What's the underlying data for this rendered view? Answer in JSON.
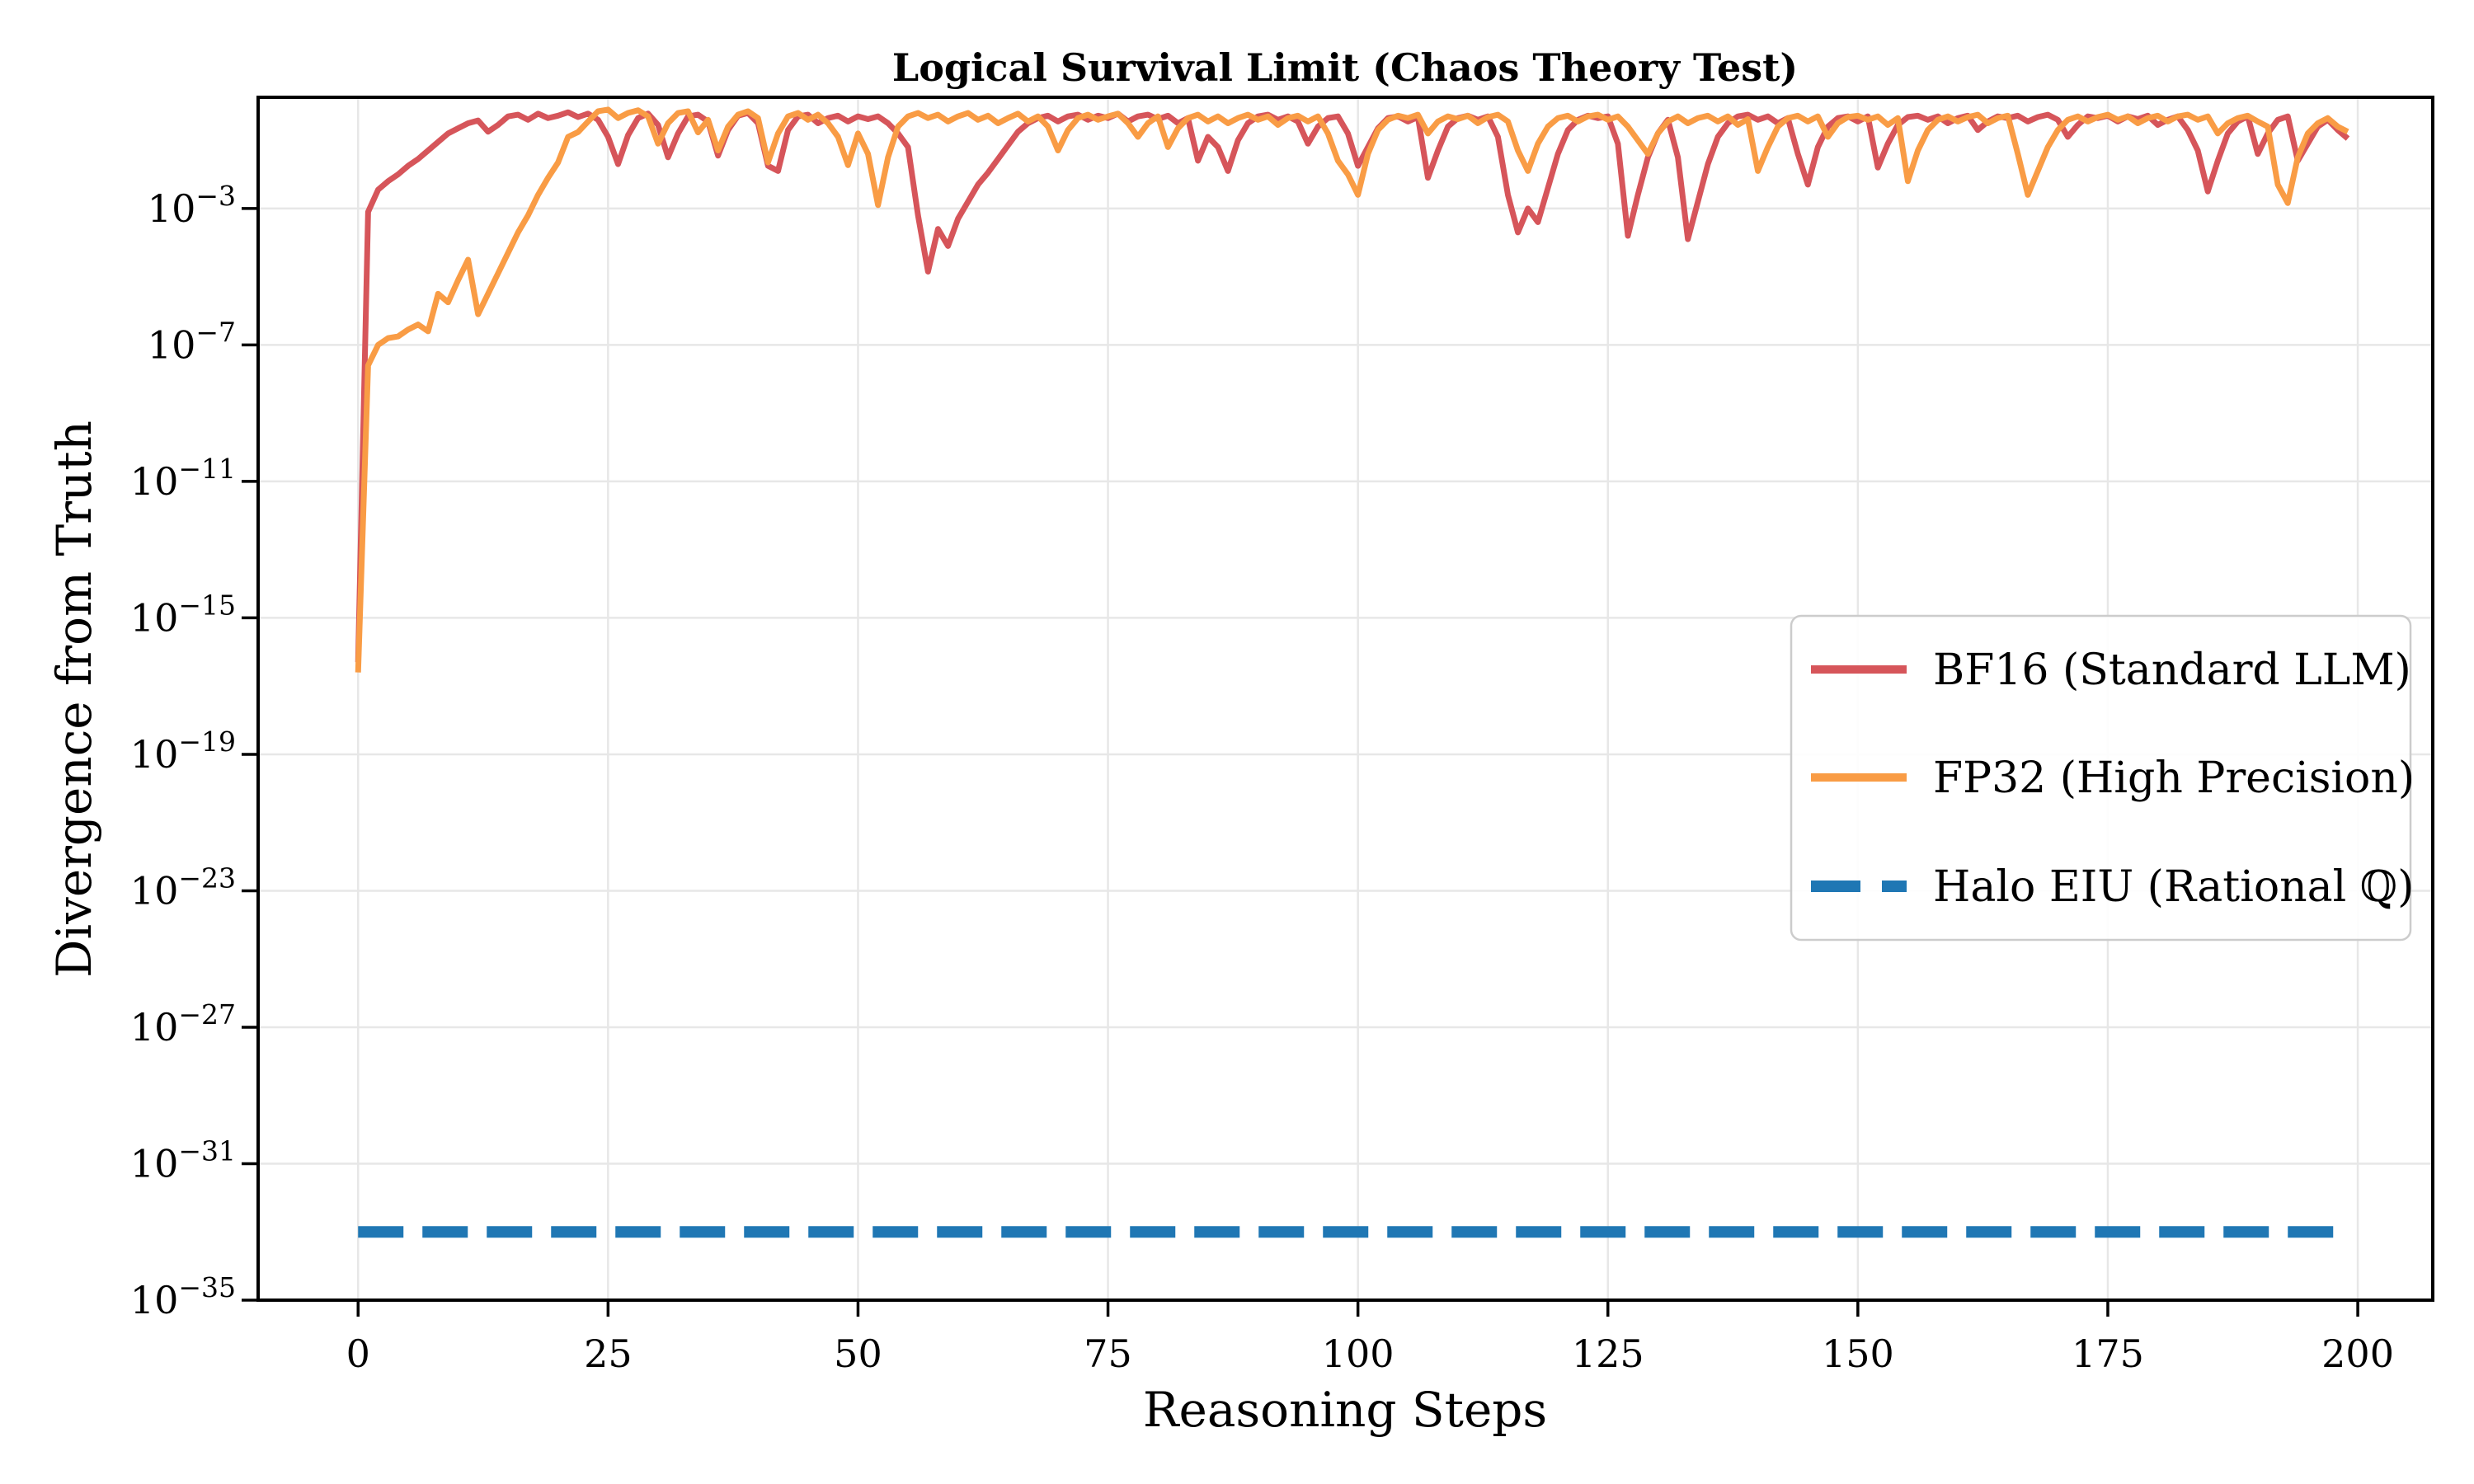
{
  "chart_data": {
    "type": "line",
    "title": "Logical Survival Limit (Chaos Theory Test)",
    "xlabel": "Reasoning Steps",
    "ylabel": "Divergence from Truth",
    "x_axis": {
      "ticks": [
        0,
        25,
        50,
        75,
        100,
        125,
        150,
        175,
        200
      ],
      "xlim": [
        -10,
        207.5
      ]
    },
    "y_axis": {
      "scale": "log",
      "tick_exponents": [
        -3,
        -7,
        -11,
        -15,
        -19,
        -23,
        -27,
        -31,
        -35
      ],
      "ylog10_lim": [
        -35,
        0.26
      ]
    },
    "grid": true,
    "legend_position": "center right",
    "style": {
      "background": "#ffffff",
      "grid_color": "#e7e7e7",
      "spine_color": "#000000",
      "legend_border": "#cccccc",
      "legend_bg": "#ffffff"
    },
    "series": [
      {
        "name": "BF16 (Standard LLM)",
        "color": "#d6555a",
        "style": "solid",
        "width": 7,
        "x_start": 0,
        "x_step": 1,
        "log10_values": [
          -16.3,
          -3.1,
          -2.45,
          -2.2,
          -2.0,
          -1.75,
          -1.55,
          -1.3,
          -1.05,
          -0.8,
          -0.65,
          -0.5,
          -0.42,
          -0.75,
          -0.55,
          -0.3,
          -0.25,
          -0.4,
          -0.22,
          -0.35,
          -0.28,
          -0.18,
          -0.32,
          -0.22,
          -0.4,
          -0.9,
          -1.7,
          -0.85,
          -0.35,
          -0.22,
          -0.55,
          -1.5,
          -0.8,
          -0.3,
          -0.25,
          -0.45,
          -1.45,
          -0.7,
          -0.28,
          -0.2,
          -0.5,
          -1.75,
          -1.9,
          -0.7,
          -0.3,
          -0.25,
          -0.5,
          -0.35,
          -0.28,
          -0.45,
          -0.3,
          -0.38,
          -0.3,
          -0.5,
          -0.8,
          -1.2,
          -3.2,
          -4.85,
          -3.6,
          -4.1,
          -3.3,
          -2.8,
          -2.3,
          -1.95,
          -1.55,
          -1.15,
          -0.75,
          -0.5,
          -0.35,
          -0.28,
          -0.45,
          -0.3,
          -0.25,
          -0.4,
          -0.28,
          -0.35,
          -0.22,
          -0.45,
          -0.3,
          -0.25,
          -0.38,
          -0.28,
          -0.5,
          -0.35,
          -1.6,
          -0.9,
          -1.2,
          -1.9,
          -1.0,
          -0.5,
          -0.3,
          -0.25,
          -0.4,
          -0.3,
          -0.45,
          -1.1,
          -0.6,
          -0.35,
          -0.3,
          -0.8,
          -1.75,
          -1.2,
          -0.65,
          -0.35,
          -0.3,
          -0.45,
          -0.32,
          -2.1,
          -1.3,
          -0.6,
          -0.35,
          -0.28,
          -0.4,
          -0.3,
          -0.9,
          -2.6,
          -3.7,
          -3.0,
          -3.4,
          -2.4,
          -1.4,
          -0.7,
          -0.4,
          -0.28,
          -0.35,
          -0.3,
          -1.1,
          -3.8,
          -2.6,
          -1.5,
          -0.8,
          -0.4,
          -1.5,
          -3.9,
          -2.8,
          -1.7,
          -0.9,
          -0.5,
          -0.3,
          -0.25,
          -0.4,
          -0.3,
          -0.5,
          -0.35,
          -1.4,
          -2.3,
          -1.2,
          -0.6,
          -0.35,
          -0.3,
          -0.45,
          -0.3,
          -1.8,
          -1.1,
          -0.55,
          -0.32,
          -0.28,
          -0.4,
          -0.3,
          -0.5,
          -0.35,
          -0.28,
          -0.7,
          -0.45,
          -0.3,
          -0.35,
          -0.28,
          -0.45,
          -0.32,
          -0.25,
          -0.4,
          -0.9,
          -0.55,
          -0.3,
          -0.35,
          -0.28,
          -0.45,
          -0.3,
          -0.38,
          -0.28,
          -0.55,
          -0.4,
          -0.3,
          -0.7,
          -1.3,
          -2.5,
          -1.6,
          -0.8,
          -0.45,
          -0.3,
          -1.4,
          -0.8,
          -0.4,
          -0.3,
          -1.6,
          -1.1,
          -0.6,
          -0.4,
          -0.7,
          -0.95
        ]
      },
      {
        "name": "FP32 (High Precision)",
        "color": "#f99c45",
        "style": "solid",
        "width": 7,
        "x_start": 0,
        "x_step": 1,
        "log10_values": [
          -16.6,
          -7.6,
          -7.0,
          -6.8,
          -6.75,
          -6.55,
          -6.4,
          -6.6,
          -5.5,
          -5.75,
          -5.1,
          -4.5,
          -6.1,
          -5.5,
          -4.9,
          -4.3,
          -3.7,
          -3.2,
          -2.6,
          -2.1,
          -1.65,
          -0.9,
          -0.76,
          -0.45,
          -0.15,
          -0.1,
          -0.35,
          -0.2,
          -0.12,
          -0.3,
          -1.1,
          -0.5,
          -0.2,
          -0.15,
          -0.77,
          -0.4,
          -1.3,
          -0.6,
          -0.25,
          -0.15,
          -0.35,
          -1.65,
          -0.8,
          -0.3,
          -0.2,
          -0.4,
          -0.25,
          -0.5,
          -0.9,
          -1.73,
          -0.8,
          -1.4,
          -2.9,
          -1.5,
          -0.6,
          -0.3,
          -0.2,
          -0.35,
          -0.25,
          -0.45,
          -0.3,
          -0.2,
          -0.4,
          -0.28,
          -0.5,
          -0.35,
          -0.22,
          -0.45,
          -0.3,
          -0.6,
          -1.3,
          -0.7,
          -0.35,
          -0.25,
          -0.4,
          -0.3,
          -0.22,
          -0.5,
          -0.9,
          -0.5,
          -0.3,
          -1.2,
          -0.65,
          -0.35,
          -0.25,
          -0.45,
          -0.3,
          -0.5,
          -0.35,
          -0.25,
          -0.4,
          -0.3,
          -0.55,
          -0.35,
          -0.28,
          -0.45,
          -0.3,
          -0.8,
          -1.6,
          -2.0,
          -2.6,
          -1.4,
          -0.7,
          -0.4,
          -0.28,
          -0.35,
          -0.25,
          -0.8,
          -0.45,
          -0.3,
          -0.38,
          -0.28,
          -0.5,
          -0.32,
          -0.25,
          -0.45,
          -1.3,
          -1.9,
          -1.1,
          -0.6,
          -0.35,
          -0.28,
          -0.45,
          -0.3,
          -0.25,
          -0.4,
          -0.3,
          -0.6,
          -1.0,
          -1.4,
          -0.8,
          -0.45,
          -0.3,
          -0.5,
          -0.35,
          -0.28,
          -0.45,
          -0.3,
          -0.55,
          -0.38,
          -1.9,
          -1.2,
          -0.6,
          -0.35,
          -0.28,
          -0.45,
          -0.3,
          -0.9,
          -0.5,
          -0.32,
          -0.28,
          -0.4,
          -0.3,
          -0.55,
          -0.35,
          -2.2,
          -1.3,
          -0.7,
          -0.4,
          -0.3,
          -0.45,
          -0.32,
          -0.25,
          -0.5,
          -0.35,
          -0.28,
          -1.4,
          -2.6,
          -1.9,
          -1.2,
          -0.7,
          -0.4,
          -0.3,
          -0.45,
          -0.32,
          -0.25,
          -0.4,
          -0.3,
          -0.5,
          -0.35,
          -0.28,
          -0.45,
          -0.3,
          -0.25,
          -0.4,
          -0.3,
          -0.8,
          -0.5,
          -0.35,
          -0.28,
          -0.45,
          -0.6,
          -2.3,
          -2.84,
          -1.5,
          -0.8,
          -0.5,
          -0.35,
          -0.6,
          -0.75
        ]
      },
      {
        "name": "Halo EIU (Rational ℚ)",
        "color": "#1f77b4",
        "style": "dashed",
        "dash": [
          55,
          23
        ],
        "width": 14,
        "x": [
          0,
          199
        ],
        "log10_values": [
          -33,
          -33
        ]
      }
    ]
  }
}
